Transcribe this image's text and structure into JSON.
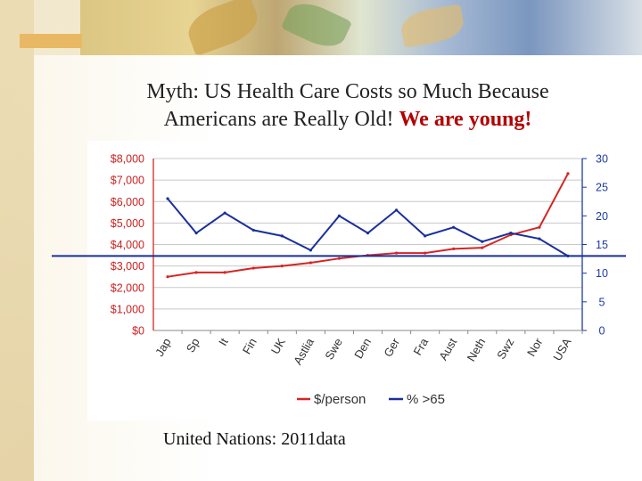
{
  "slide": {
    "title_line1": "Myth: US Health Care Costs so Much Because",
    "title_line2": "Americans are Really Old!",
    "title_emphasis": "We are young!",
    "source": "United Nations: 2011data"
  },
  "colors": {
    "cost_series": "#d62424",
    "age_series": "#1a2f9c",
    "left_axis_text": "#cc1f1f",
    "right_axis_text": "#1f3aa5",
    "grid": "#c8c8c8",
    "emphasis": "#b30000"
  },
  "chart_data": {
    "type": "line",
    "categories": [
      "Jap",
      "Sp",
      "It",
      "Fin",
      "UK",
      "Astlia",
      "Swe",
      "Den",
      "Ger",
      "Fra",
      "Aust",
      "Neth",
      "Swz",
      "Nor",
      "USA"
    ],
    "series": [
      {
        "name": "$/person",
        "axis": "left",
        "values": [
          2500,
          2700,
          2700,
          2900,
          3000,
          3150,
          3350,
          3500,
          3600,
          3600,
          3800,
          3850,
          4450,
          4800,
          7300
        ]
      },
      {
        "name": "% >65",
        "axis": "right",
        "values": [
          23,
          17,
          20.5,
          17.5,
          16.5,
          14,
          20,
          17,
          21,
          16.5,
          18,
          15.5,
          17,
          16,
          13
        ]
      }
    ],
    "y_left": {
      "ylim": [
        0,
        8000
      ],
      "ticks": [
        "$0",
        "$1,000",
        "$2,000",
        "$3,000",
        "$4,000",
        "$5,000",
        "$6,000",
        "$7,000",
        "$8,000"
      ]
    },
    "y_right": {
      "ylim": [
        0,
        30
      ],
      "ticks": [
        "0",
        "5",
        "10",
        "15",
        "20",
        "25",
        "30"
      ]
    },
    "reference_line": {
      "axis": "right",
      "value": 13
    },
    "legend": [
      "$/person",
      "% >65"
    ],
    "legend_position": "bottom",
    "grid": true
  }
}
